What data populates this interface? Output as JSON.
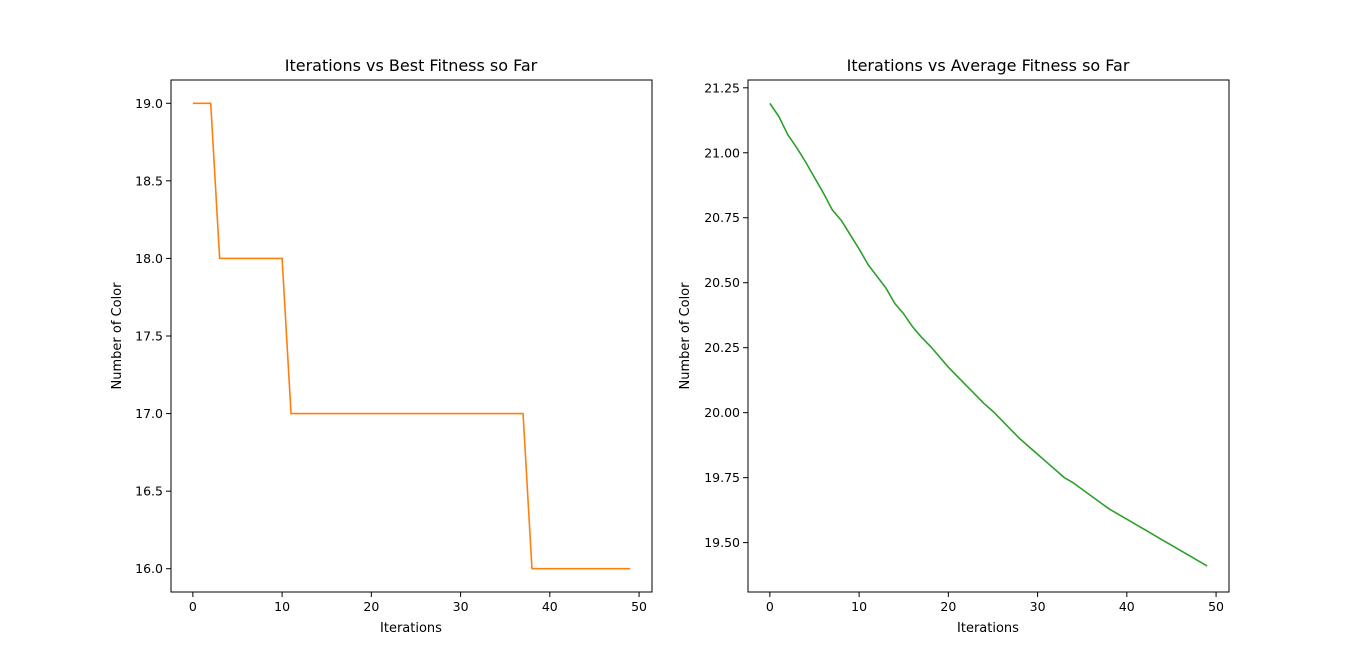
{
  "chart_data": [
    {
      "type": "line",
      "title": "Iterations vs Best Fitness so Far",
      "xlabel": "Iterations",
      "ylabel": "Number of Color",
      "xlim": [
        -2.45,
        51.45
      ],
      "ylim": [
        15.85,
        19.15
      ],
      "xticks": [
        0,
        10,
        20,
        30,
        40,
        50
      ],
      "yticks": [
        16.0,
        16.5,
        17.0,
        17.5,
        18.0,
        18.5,
        19.0
      ],
      "ytick_labels": [
        "16.0",
        "16.5",
        "17.0",
        "17.5",
        "18.0",
        "18.5",
        "19.0"
      ],
      "grid": false,
      "color": "#ff7f0e",
      "series": [
        {
          "x": [
            0,
            1,
            2,
            3,
            4,
            5,
            6,
            7,
            8,
            9,
            10,
            11,
            12,
            13,
            14,
            15,
            16,
            17,
            18,
            19,
            20,
            21,
            22,
            23,
            24,
            25,
            26,
            27,
            28,
            29,
            30,
            31,
            32,
            33,
            34,
            35,
            36,
            37,
            38,
            39,
            40,
            41,
            42,
            43,
            44,
            45,
            46,
            47,
            48,
            49
          ],
          "values": [
            19,
            19,
            19,
            18,
            18,
            18,
            18,
            18,
            18,
            18,
            18,
            17,
            17,
            17,
            17,
            17,
            17,
            17,
            17,
            17,
            17,
            17,
            17,
            17,
            17,
            17,
            17,
            17,
            17,
            17,
            17,
            17,
            17,
            17,
            17,
            17,
            17,
            17,
            16,
            16,
            16,
            16,
            16,
            16,
            16,
            16,
            16,
            16,
            16,
            16
          ]
        }
      ]
    },
    {
      "type": "line",
      "title": "Iterations vs Average Fitness so Far",
      "xlabel": "Iterations",
      "ylabel": "Number of Color",
      "xlim": [
        -2.45,
        51.45
      ],
      "ylim": [
        19.31,
        21.28
      ],
      "xticks": [
        0,
        10,
        20,
        30,
        40,
        50
      ],
      "yticks": [
        19.5,
        19.75,
        20.0,
        20.25,
        20.5,
        20.75,
        21.0,
        21.25
      ],
      "ytick_labels": [
        "19.50",
        "19.75",
        "20.00",
        "20.25",
        "20.50",
        "20.75",
        "21.00",
        "21.25"
      ],
      "grid": false,
      "color": "#2ca02c",
      "series": [
        {
          "x": [
            0,
            1,
            2,
            3,
            4,
            5,
            6,
            7,
            8,
            9,
            10,
            11,
            12,
            13,
            14,
            15,
            16,
            17,
            18,
            19,
            20,
            21,
            22,
            23,
            24,
            25,
            26,
            27,
            28,
            29,
            30,
            31,
            32,
            33,
            34,
            35,
            36,
            37,
            38,
            39,
            40,
            41,
            42,
            43,
            44,
            45,
            46,
            47,
            48,
            49
          ],
          "values": [
            21.19,
            21.14,
            21.07,
            21.02,
            20.965,
            20.905,
            20.845,
            20.78,
            20.74,
            20.685,
            20.63,
            20.57,
            20.525,
            20.48,
            20.42,
            20.38,
            20.33,
            20.29,
            20.255,
            20.215,
            20.175,
            20.14,
            20.105,
            20.07,
            20.035,
            20.005,
            19.97,
            19.935,
            19.9,
            19.87,
            19.84,
            19.81,
            19.78,
            19.75,
            19.73,
            19.705,
            19.68,
            19.655,
            19.63,
            19.61,
            19.59,
            19.57,
            19.55,
            19.53,
            19.51,
            19.49,
            19.47,
            19.45,
            19.43,
            19.41
          ]
        }
      ]
    }
  ]
}
